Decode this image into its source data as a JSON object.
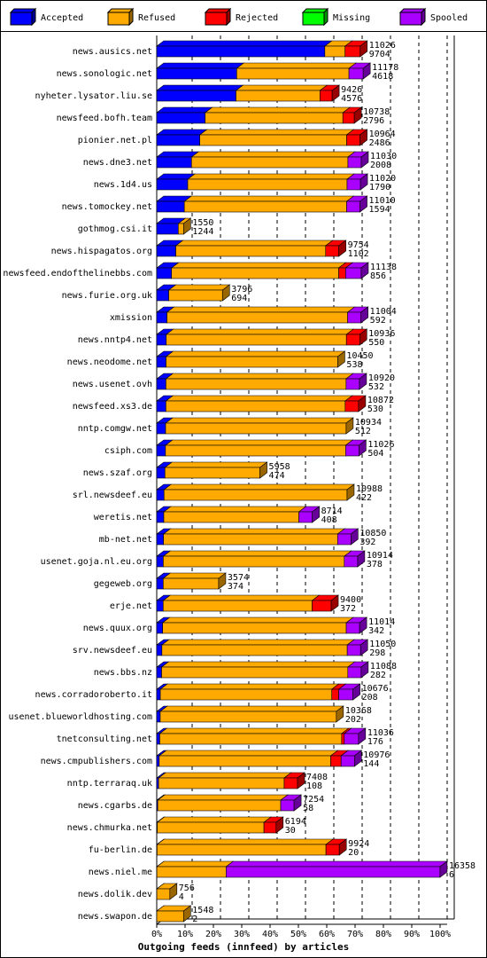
{
  "chart_data": {
    "type": "bar3d",
    "title": "Outgoing feeds (innfeed) by articles",
    "categories": [
      "news.ausics.net",
      "news.sonologic.net",
      "nyheter.lysator.liu.se",
      "newsfeed.bofh.team",
      "pionier.net.pl",
      "news.dne3.net",
      "news.1d4.us",
      "news.tomockey.net",
      "gothmog.csi.it",
      "news.hispagatos.org",
      "newsfeed.endofthelinebbs.com",
      "news.furie.org.uk",
      "xmission",
      "news.nntp4.net",
      "news.neodome.net",
      "news.usenet.ovh",
      "newsfeed.xs3.de",
      "nntp.comgw.net",
      "csiph.com",
      "news.szaf.org",
      "srl.newsdeef.eu",
      "weretis.net",
      "mb-net.net",
      "usenet.goja.nl.eu.org",
      "gegeweb.org",
      "erje.net",
      "news.quux.org",
      "srv.newsdeef.eu",
      "news.bbs.nz",
      "news.corradoroberto.it",
      "usenet.blueworldhosting.com",
      "tnetconsulting.net",
      "news.cmpublishers.com",
      "nntp.terraraq.uk",
      "news.cgarbs.de",
      "news.chmurka.net",
      "fu-berlin.de",
      "news.niel.me",
      "news.dolik.dev",
      "news.swapon.de"
    ],
    "offered": [
      11026,
      11178,
      9426,
      10738,
      10964,
      11030,
      11020,
      11010,
      1550,
      9754,
      11138,
      3796,
      11004,
      10936,
      10450,
      10920,
      10872,
      10934,
      11026,
      5958,
      10988,
      8714,
      10850,
      10914,
      3574,
      9400,
      11014,
      11050,
      11088,
      10676,
      10368,
      11036,
      10976,
      7408,
      7254,
      6194,
      9924,
      16358,
      756,
      1548
    ],
    "series": [
      {
        "name": "Accepted",
        "color": "#0000ff",
        "values": [
          9704,
          4618,
          4576,
          2796,
          2486,
          2008,
          1790,
          1594,
          1244,
          1102,
          856,
          694,
          592,
          550,
          538,
          532,
          530,
          512,
          504,
          474,
          422,
          408,
          392,
          378,
          374,
          372,
          342,
          298,
          282,
          208,
          202,
          176,
          144,
          108,
          58,
          30,
          20,
          6,
          4,
          2
        ]
      },
      {
        "name": "Refused",
        "color": "#ffaa00",
        "values": [
          1170,
          6480,
          4850,
          7950,
          8480,
          9030,
          9200,
          9370,
          306,
          8650,
          9650,
          3102,
          10430,
          10400,
          9912,
          10400,
          10350,
          10422,
          10400,
          5484,
          10566,
          7800,
          10050,
          10450,
          3200,
          8600,
          10600,
          10700,
          10750,
          9900,
          10166,
          10500,
          9900,
          7250,
          7100,
          6160,
          9750,
          4000,
          752,
          1546
        ]
      },
      {
        "name": "Rejected",
        "color": "#ff0000",
        "values": [
          870,
          0,
          700,
          660,
          770,
          0,
          0,
          0,
          0,
          760,
          400,
          0,
          0,
          770,
          0,
          0,
          770,
          0,
          0,
          0,
          0,
          0,
          0,
          0,
          0,
          1100,
          0,
          0,
          0,
          400,
          0,
          150,
          600,
          770,
          0,
          700,
          770,
          0,
          0,
          0
        ]
      },
      {
        "name": "Missing",
        "color": "#00ff00",
        "values": [
          0,
          0,
          0,
          0,
          0,
          0,
          0,
          0,
          0,
          0,
          0,
          0,
          0,
          0,
          0,
          0,
          0,
          0,
          0,
          0,
          0,
          0,
          0,
          0,
          0,
          0,
          0,
          0,
          0,
          0,
          0,
          0,
          0,
          0,
          0,
          0,
          0,
          0,
          0,
          0
        ]
      },
      {
        "name": "Spooled",
        "color": "#aa00ff",
        "values": [
          0,
          820,
          0,
          0,
          0,
          770,
          770,
          770,
          0,
          0,
          900,
          0,
          770,
          0,
          0,
          770,
          0,
          0,
          770,
          0,
          0,
          770,
          770,
          770,
          0,
          0,
          770,
          770,
          770,
          820,
          0,
          820,
          770,
          0,
          770,
          0,
          0,
          12350,
          0,
          0
        ]
      }
    ],
    "xlim": [
      0,
      17176
    ],
    "xticks": [
      {
        "value": 0,
        "label": "0%"
      },
      {
        "value": 1635.8,
        "label": "10%"
      },
      {
        "value": 3271.6,
        "label": "20%"
      },
      {
        "value": 4907.4,
        "label": "30%"
      },
      {
        "value": 6543.2,
        "label": "40%"
      },
      {
        "value": 8179,
        "label": "50%"
      },
      {
        "value": 9814.8,
        "label": "60%"
      },
      {
        "value": 11450.6,
        "label": "70%"
      },
      {
        "value": 13086.4,
        "label": "80%"
      },
      {
        "value": 14722.2,
        "label": "90%"
      },
      {
        "value": 16358,
        "label": "100%"
      }
    ],
    "grid": true
  }
}
